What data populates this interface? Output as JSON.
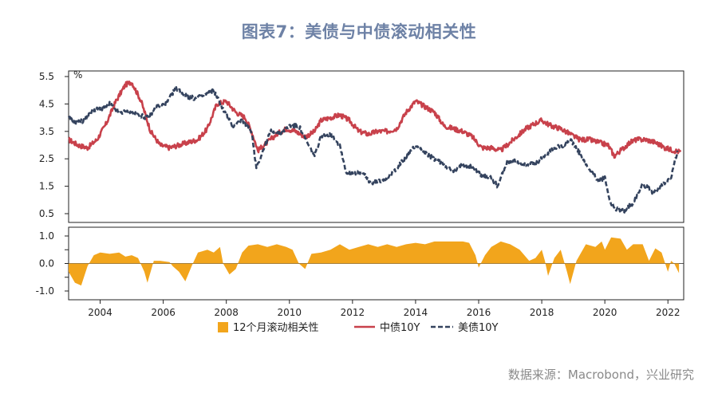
{
  "title": "图表7：美债与中债滚动相关性",
  "source": "数据来源：Macrobond，兴业研究",
  "colors": {
    "cn": "#c8414b",
    "us": "#34435e",
    "corr": "#f2a51c",
    "title": "#6e82a6"
  },
  "chart_data": [
    {
      "type": "line",
      "unit_label": "%",
      "ylim": [
        0.5,
        5.5
      ],
      "yticks": [
        "5.5",
        "4.5",
        "3.5",
        "2.5",
        "1.5",
        "0.5"
      ],
      "xlim": [
        2003.0,
        2022.5
      ],
      "grid": false,
      "series": [
        {
          "name": "中债10Y",
          "style": "solid",
          "x": [
            2003.0,
            2003.3,
            2003.6,
            2003.9,
            2004.2,
            2004.5,
            2004.8,
            2005.0,
            2005.3,
            2005.6,
            2005.9,
            2006.2,
            2006.5,
            2006.8,
            2007.1,
            2007.4,
            2007.7,
            2008.0,
            2008.3,
            2008.6,
            2008.8,
            2009.0,
            2009.3,
            2009.6,
            2009.9,
            2010.2,
            2010.5,
            2010.8,
            2011.0,
            2011.3,
            2011.6,
            2011.9,
            2012.2,
            2012.5,
            2012.8,
            2013.1,
            2013.4,
            2013.7,
            2014.0,
            2014.3,
            2014.6,
            2014.9,
            2015.2,
            2015.5,
            2015.8,
            2016.1,
            2016.4,
            2016.7,
            2016.9,
            2017.2,
            2017.5,
            2017.8,
            2018.0,
            2018.3,
            2018.6,
            2018.9,
            2019.2,
            2019.5,
            2019.8,
            2020.1,
            2020.3,
            2020.5,
            2020.8,
            2021.0,
            2021.3,
            2021.6,
            2021.9,
            2022.2,
            2022.4
          ],
          "y": [
            3.2,
            3.0,
            2.9,
            3.2,
            3.8,
            4.6,
            5.2,
            5.3,
            4.6,
            3.5,
            3.0,
            2.9,
            3.0,
            3.1,
            3.2,
            3.6,
            4.5,
            4.6,
            4.2,
            4.0,
            3.5,
            2.8,
            3.1,
            3.4,
            3.6,
            3.5,
            3.3,
            3.5,
            3.9,
            4.0,
            4.1,
            3.9,
            3.5,
            3.4,
            3.5,
            3.5,
            3.6,
            4.2,
            4.6,
            4.4,
            4.2,
            3.7,
            3.6,
            3.5,
            3.3,
            2.9,
            2.9,
            2.8,
            3.0,
            3.3,
            3.6,
            3.8,
            3.9,
            3.7,
            3.6,
            3.4,
            3.2,
            3.2,
            3.1,
            3.0,
            2.6,
            2.8,
            3.1,
            3.2,
            3.2,
            3.1,
            2.9,
            2.8,
            2.75
          ]
        },
        {
          "name": "美债10Y",
          "style": "dashed",
          "x": [
            2003.0,
            2003.2,
            2003.5,
            2003.8,
            2004.0,
            2004.3,
            2004.6,
            2004.9,
            2005.2,
            2005.5,
            2005.8,
            2006.1,
            2006.4,
            2006.7,
            2007.0,
            2007.3,
            2007.6,
            2007.9,
            2008.2,
            2008.5,
            2008.8,
            2008.95,
            2009.1,
            2009.4,
            2009.7,
            2010.0,
            2010.3,
            2010.6,
            2010.8,
            2011.0,
            2011.3,
            2011.6,
            2011.8,
            2012.0,
            2012.3,
            2012.6,
            2012.9,
            2013.2,
            2013.5,
            2013.8,
            2014.0,
            2014.3,
            2014.6,
            2014.9,
            2015.2,
            2015.5,
            2015.8,
            2016.1,
            2016.4,
            2016.6,
            2016.9,
            2017.2,
            2017.5,
            2017.8,
            2018.1,
            2018.4,
            2018.7,
            2018.9,
            2019.2,
            2019.5,
            2019.8,
            2020.0,
            2020.15,
            2020.3,
            2020.6,
            2020.9,
            2021.2,
            2021.5,
            2021.8,
            2022.1,
            2022.3
          ],
          "y": [
            4.0,
            3.8,
            3.9,
            4.3,
            4.3,
            4.5,
            4.2,
            4.2,
            4.1,
            4.0,
            4.4,
            4.5,
            5.1,
            4.8,
            4.7,
            4.8,
            5.0,
            4.3,
            3.7,
            3.9,
            3.5,
            2.2,
            2.6,
            3.5,
            3.4,
            3.7,
            3.7,
            3.0,
            2.6,
            3.3,
            3.4,
            3.0,
            2.0,
            2.0,
            2.0,
            1.6,
            1.7,
            1.9,
            2.3,
            2.7,
            3.0,
            2.7,
            2.5,
            2.3,
            2.0,
            2.3,
            2.2,
            1.9,
            1.8,
            1.5,
            2.4,
            2.4,
            2.3,
            2.3,
            2.6,
            2.9,
            3.0,
            3.2,
            2.7,
            2.1,
            1.7,
            1.8,
            1.0,
            0.7,
            0.6,
            0.9,
            1.6,
            1.3,
            1.5,
            1.8,
            2.8
          ]
        }
      ]
    },
    {
      "type": "area",
      "ylim": [
        -1.0,
        1.0
      ],
      "yticks": [
        "1.0",
        "0.0",
        "-1.0"
      ],
      "xlim": [
        2003.0,
        2022.5
      ],
      "xticks": [
        "2004",
        "2006",
        "2008",
        "2010",
        "2012",
        "2014",
        "2016",
        "2018",
        "2020",
        "2022"
      ],
      "grid": false,
      "series": [
        {
          "name": "12个月滚动相关性",
          "x": [
            2003.0,
            2003.2,
            2003.4,
            2003.6,
            2003.8,
            2004.0,
            2004.3,
            2004.6,
            2004.8,
            2005.0,
            2005.2,
            2005.4,
            2005.5,
            2005.7,
            2005.9,
            2006.2,
            2006.3,
            2006.5,
            2006.7,
            2006.9,
            2007.1,
            2007.4,
            2007.6,
            2007.8,
            2007.9,
            2008.1,
            2008.3,
            2008.5,
            2008.7,
            2009.0,
            2009.3,
            2009.6,
            2009.9,
            2010.1,
            2010.3,
            2010.5,
            2010.7,
            2011.0,
            2011.3,
            2011.6,
            2011.9,
            2012.2,
            2012.5,
            2012.8,
            2013.1,
            2013.4,
            2013.7,
            2014.0,
            2014.3,
            2014.6,
            2014.9,
            2015.2,
            2015.5,
            2015.7,
            2015.9,
            2016.0,
            2016.2,
            2016.4,
            2016.7,
            2017.0,
            2017.3,
            2017.6,
            2017.8,
            2018.0,
            2018.1,
            2018.2,
            2018.4,
            2018.6,
            2018.8,
            2018.9,
            2019.1,
            2019.4,
            2019.7,
            2019.9,
            2020.0,
            2020.2,
            2020.5,
            2020.7,
            2020.9,
            2021.2,
            2021.4,
            2021.6,
            2021.8,
            2022.0,
            2022.1,
            2022.2,
            2022.35
          ],
          "y": [
            -0.3,
            -0.7,
            -0.8,
            -0.1,
            0.3,
            0.4,
            0.35,
            0.4,
            0.25,
            0.3,
            0.2,
            -0.3,
            -0.7,
            0.1,
            0.1,
            0.05,
            -0.1,
            -0.3,
            -0.65,
            -0.1,
            0.4,
            0.5,
            0.4,
            0.6,
            0.0,
            -0.4,
            -0.2,
            0.4,
            0.65,
            0.7,
            0.6,
            0.7,
            0.6,
            0.5,
            0.0,
            -0.2,
            0.35,
            0.4,
            0.5,
            0.7,
            0.5,
            0.6,
            0.7,
            0.6,
            0.7,
            0.6,
            0.7,
            0.75,
            0.7,
            0.8,
            0.8,
            0.8,
            0.8,
            0.75,
            0.3,
            -0.15,
            0.3,
            0.6,
            0.8,
            0.7,
            0.5,
            0.1,
            0.2,
            0.5,
            0.1,
            -0.45,
            0.2,
            0.5,
            -0.3,
            -0.75,
            0.1,
            0.7,
            0.6,
            0.8,
            0.5,
            0.95,
            0.9,
            0.5,
            0.7,
            0.7,
            0.1,
            0.55,
            0.4,
            -0.3,
            0.1,
            0.0,
            -0.35
          ]
        }
      ]
    }
  ],
  "legend": [
    {
      "label": "12个月滚动相关性",
      "kind": "box"
    },
    {
      "label": "中债10Y",
      "kind": "solid"
    },
    {
      "label": "美债10Y",
      "kind": "dashed"
    }
  ]
}
